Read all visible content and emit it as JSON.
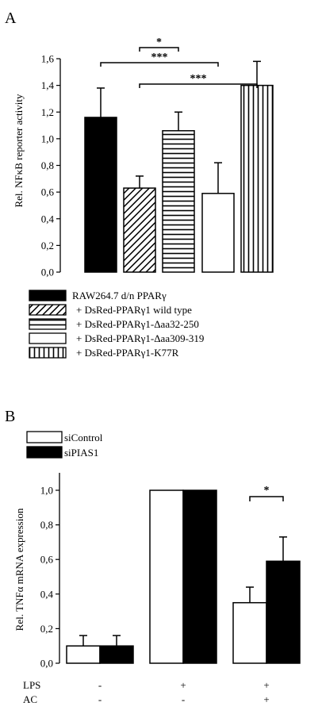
{
  "panel_a_label": "A",
  "panel_b_label": "B",
  "chart_data": [
    {
      "type": "bar",
      "panel": "A",
      "ylabel": "Rel. NFκB reporter activity",
      "ylim": [
        0,
        1.6
      ],
      "yticks": [
        "0,0",
        "0,2",
        "0,4",
        "0,6",
        "0,8",
        "1,0",
        "1,2",
        "1,4",
        "1,6"
      ],
      "series": [
        {
          "name": "RAW264.7 d/n PPARγ",
          "value": 1.16,
          "error": 0.22,
          "pattern": "solid"
        },
        {
          "name": "+ DsRed-PPARγ1 wild type",
          "value": 0.63,
          "error": 0.09,
          "pattern": "diagonal"
        },
        {
          "name": "+ DsRed-PPARγ1-Δaa32-250",
          "value": 1.06,
          "error": 0.14,
          "pattern": "horizontal"
        },
        {
          "name": "+ DsRed-PPARγ1-Δaa309-319",
          "value": 0.59,
          "error": 0.23,
          "pattern": "empty"
        },
        {
          "name": "+ DsRed-PPARγ1-K77R",
          "value": 1.4,
          "error": 0.18,
          "pattern": "vertical"
        }
      ],
      "significance": [
        {
          "from": 0,
          "to": 3,
          "label": "***"
        },
        {
          "from": 1,
          "to": 2,
          "label": "*"
        },
        {
          "from": 1,
          "to": 4,
          "label": "***"
        }
      ],
      "legend_position": "bottom"
    },
    {
      "type": "bar",
      "panel": "B",
      "ylabel": "Rel. TNFα mRNA expression",
      "ylim": [
        0,
        1.0
      ],
      "yticks": [
        "0,0",
        "0,2",
        "0,4",
        "0,6",
        "0,8",
        "1,0"
      ],
      "series": [
        {
          "name": "siControl",
          "fill": "empty",
          "values": [
            0.1,
            1.0,
            0.35
          ],
          "errors": [
            0.06,
            0,
            0.09
          ]
        },
        {
          "name": "siPIAS1",
          "fill": "solid",
          "values": [
            0.1,
            1.0,
            0.59
          ],
          "errors": [
            0.06,
            0,
            0.14
          ]
        }
      ],
      "conditions": [
        {
          "label": "LPS",
          "values": [
            "-",
            "+",
            "+"
          ]
        },
        {
          "label": "AC",
          "values": [
            "-",
            "-",
            "+"
          ]
        }
      ],
      "significance": [
        {
          "group": 2,
          "label": "*"
        }
      ],
      "legend_position": "top-left"
    }
  ]
}
